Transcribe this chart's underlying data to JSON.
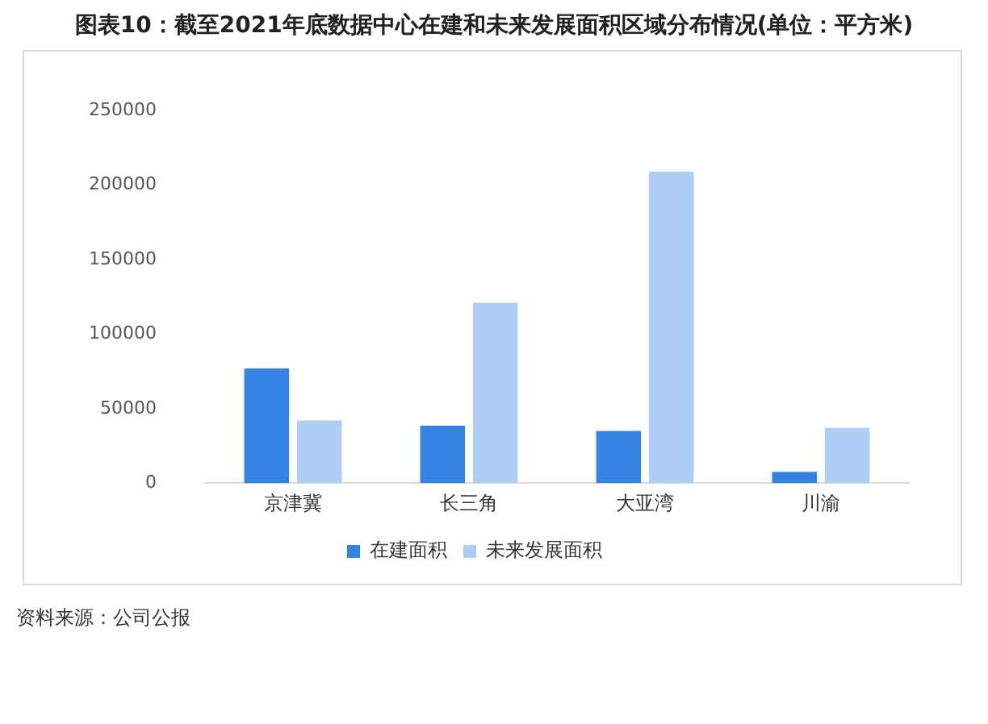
{
  "chart_data": {
    "type": "bar",
    "title": "图表10：截至2021年底数据中心在建和未来发展面积区域分布情况(单位：平方米)",
    "categories": [
      "京津冀",
      "长三角",
      "大亚湾",
      "川渝"
    ],
    "series": [
      {
        "name": "在建面积",
        "color": "#3584e4",
        "values": [
          77000,
          38500,
          35000,
          7500
        ]
      },
      {
        "name": "未来发展面积",
        "color": "#aecdf4",
        "values": [
          42000,
          121000,
          209000,
          37000
        ]
      }
    ],
    "ylim": [
      0,
      250000
    ],
    "yticks": [
      0,
      50000,
      100000,
      150000,
      200000,
      250000
    ],
    "grid": false,
    "legend": "bottom",
    "annotations": [
      "资料来源：公司公报"
    ]
  }
}
